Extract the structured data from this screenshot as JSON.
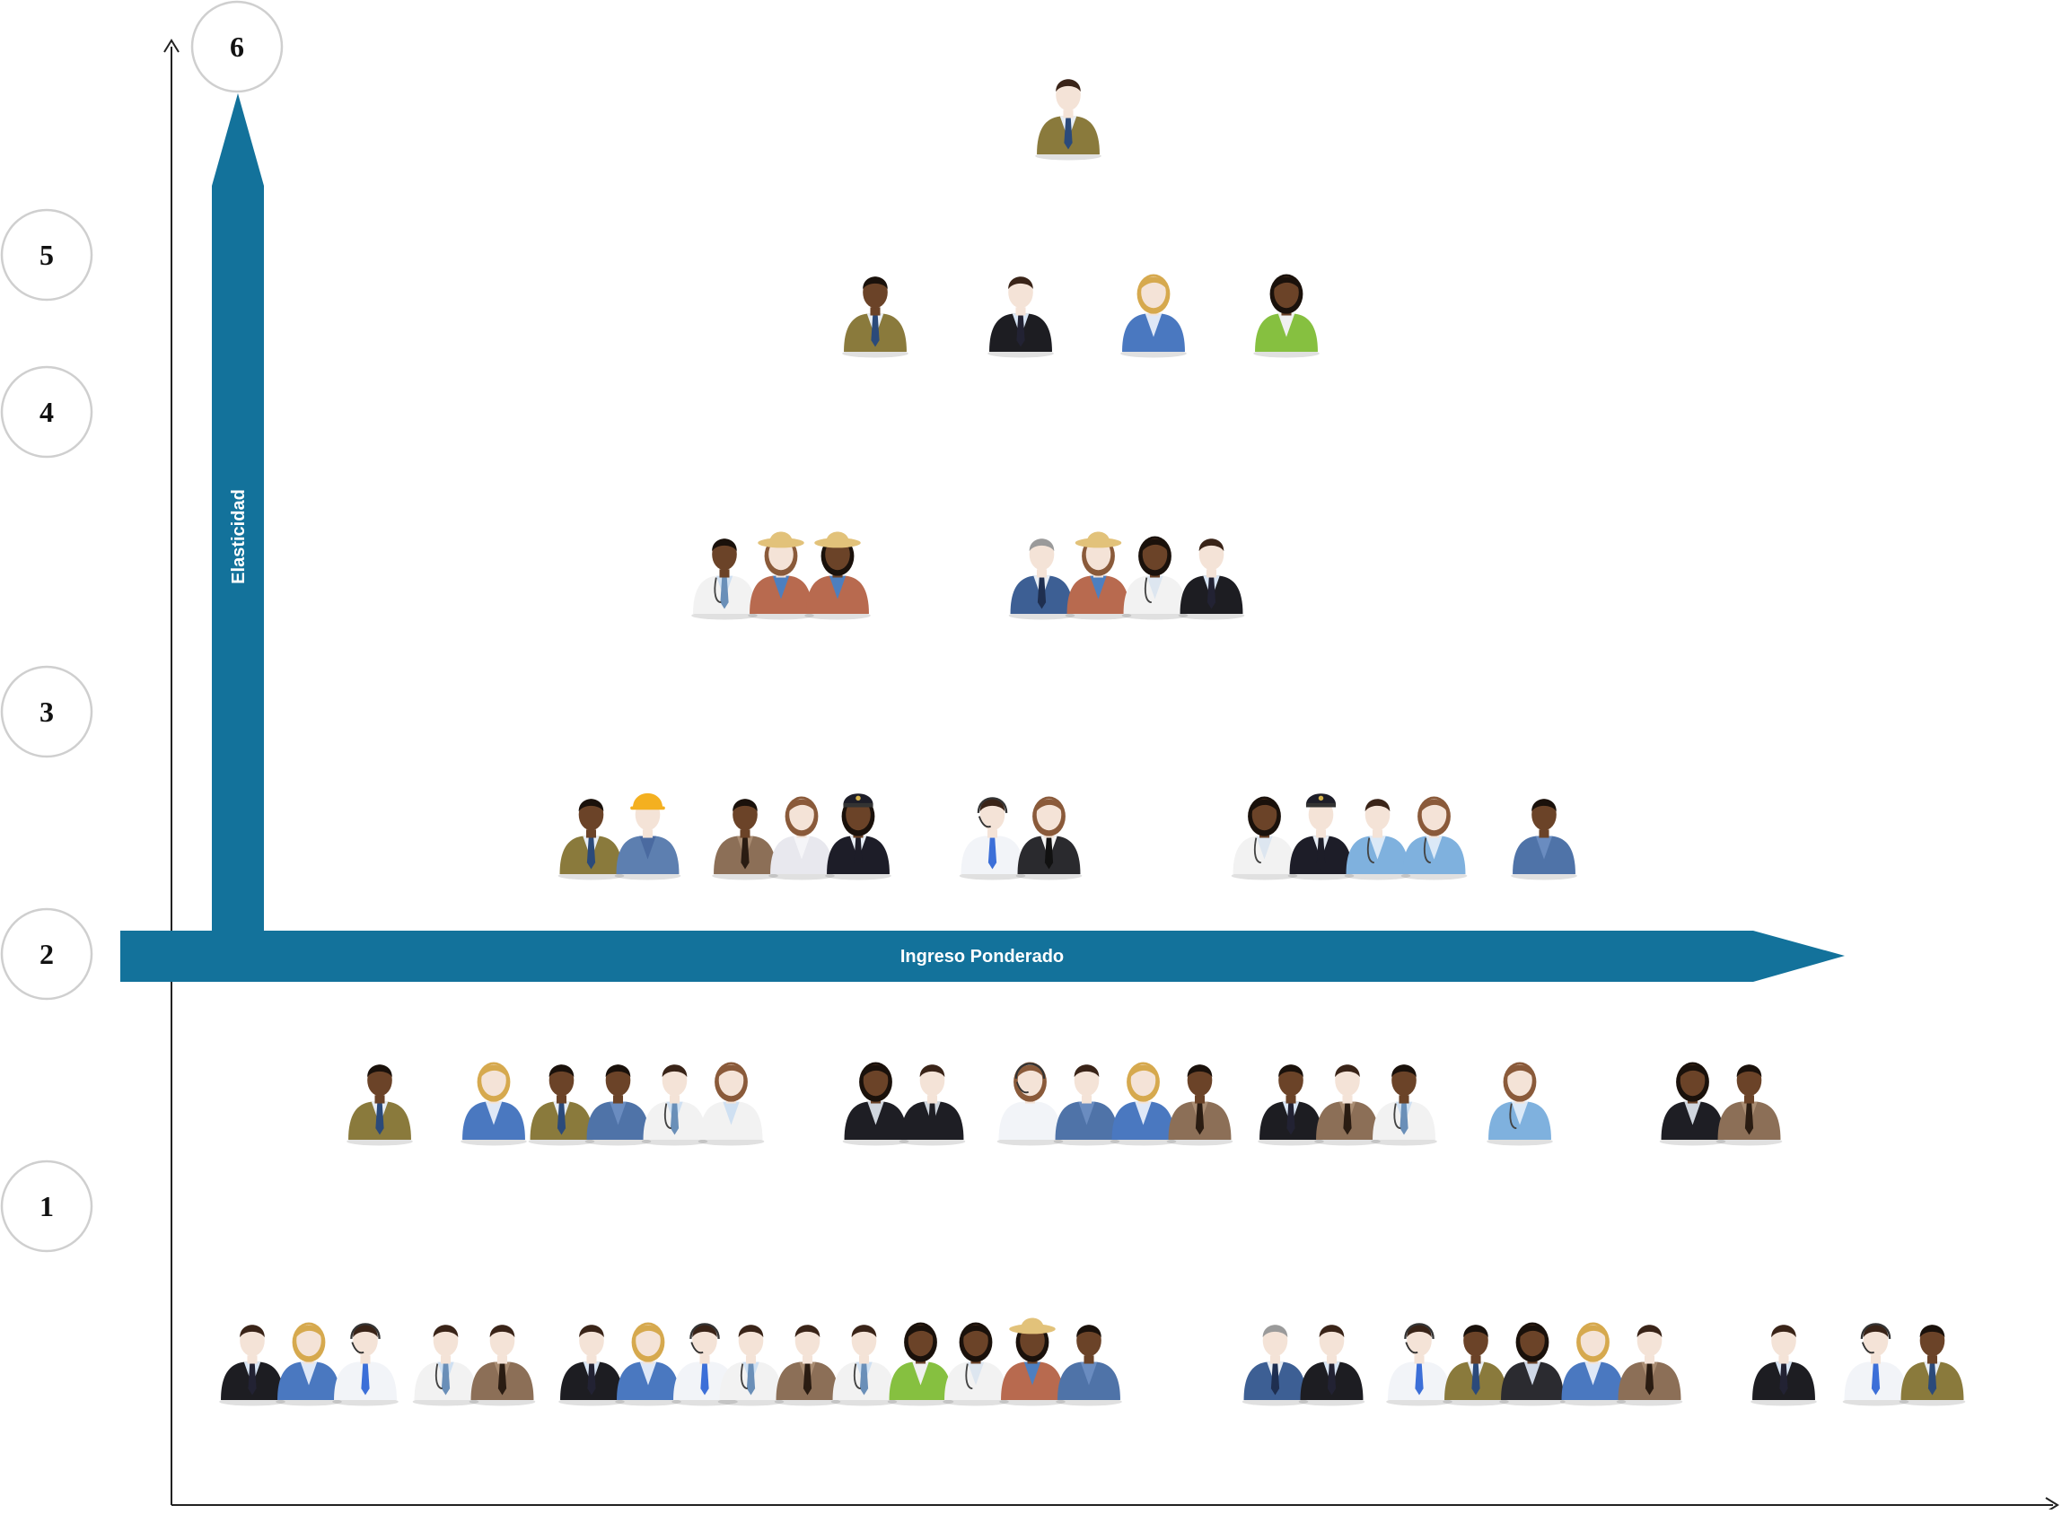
{
  "diagram": {
    "x_arrow_label": "Ingreso Ponderado",
    "y_arrow_label": "Elasticidad",
    "colors": {
      "arrow": "#13729b",
      "axis": "#222222",
      "circle_stroke": "#cfcfcf",
      "level_text": "#111111"
    },
    "levels": [
      {
        "label": "6"
      },
      {
        "label": "5"
      },
      {
        "label": "4"
      },
      {
        "label": "3"
      },
      {
        "label": "2"
      },
      {
        "label": "1"
      }
    ],
    "tiers": [
      {
        "level": "6",
        "groups": [
          [
            "businessman-olive"
          ]
        ]
      },
      {
        "level": "5",
        "groups": [
          [
            "businessman-dark-olive"
          ],
          [
            "businessman-black"
          ],
          [
            "businesswoman-blonde-blue"
          ],
          [
            "businesswoman-dark-green"
          ]
        ]
      },
      {
        "level": "4",
        "groups": [
          [
            "doctor-dark",
            "farmer-woman",
            "farmer-woman-dark"
          ],
          [
            "businessman-gray-blue",
            "farmer-woman",
            "doctor-woman-dark",
            "businessman-black"
          ]
        ]
      },
      {
        "level": "3",
        "groups": [
          [
            "businessman-dark-olive",
            "construction-worker"
          ],
          [
            "sheriff-dark",
            "nurse-woman",
            "pilot-woman-dark"
          ],
          [
            "call-center-man",
            "waitress"
          ],
          [
            "doctor-woman-dark",
            "pilot-man",
            "doctor-man-lightblue",
            "doctor-woman-lightblue"
          ],
          [
            "mechanic-dark"
          ]
        ]
      },
      {
        "level": "2",
        "groups": [
          [
            "businessman-dark-olive"
          ],
          [
            "businesswoman-blonde-blue"
          ],
          [
            "businessman-dark-olive",
            "mechanic-dark",
            "doctor-man",
            "doctor-woman"
          ],
          [
            "officer-woman-dark",
            "officer-man"
          ],
          [
            "call-center-woman",
            "mechanic",
            "businesswoman-blonde-blue",
            "sheriff-dark"
          ],
          [
            "businessman-dark-black",
            "sheriff",
            "doctor-dark"
          ],
          [
            "doctor-woman-lightblue"
          ],
          [
            "officer-woman-dark",
            "sheriff-dark"
          ]
        ]
      },
      {
        "level": "1",
        "groups": [
          [
            "businessman-black",
            "businesswoman-blonde-blue",
            "call-center-man"
          ],
          [
            "doctor-man",
            "sheriff"
          ],
          [
            "businessman-black",
            "businesswoman-blonde-blue",
            "call-center-man"
          ],
          [
            "doctor-man",
            "sheriff",
            "doctor-man",
            "businesswoman-dark-green"
          ],
          [
            "doctor-woman-dark",
            "farmer-woman-dark",
            "mechanic-dark"
          ],
          [
            "businessman-gray-blue",
            "businessman-black"
          ],
          [
            "call-center-man",
            "businessman-dark-olive",
            "businesswoman-dark-black"
          ],
          [
            "businesswoman-blonde-blue",
            "sheriff"
          ],
          [
            "businessman-black"
          ],
          [
            "call-center-man",
            "businessman-dark-olive"
          ]
        ]
      }
    ]
  }
}
